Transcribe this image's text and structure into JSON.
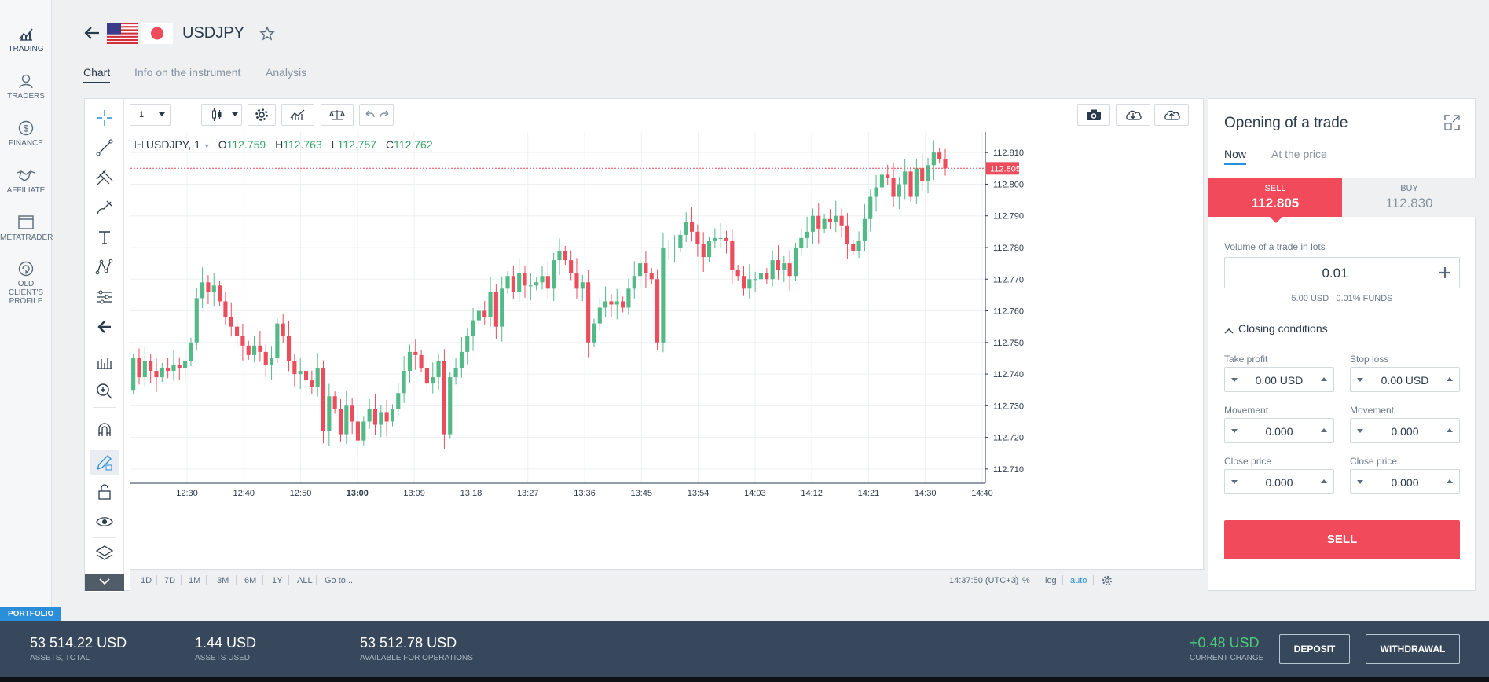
{
  "nav": {
    "items": [
      {
        "label": "TRADING",
        "icon": "chart-icon"
      },
      {
        "label": "TRADERS",
        "icon": "user-icon"
      },
      {
        "label": "FINANCE",
        "icon": "dollar-icon"
      },
      {
        "label": "AFFILIATE",
        "icon": "handshake-icon"
      },
      {
        "label": "METATRADER",
        "icon": "window-icon"
      },
      {
        "label": "OLD CLIENT'S",
        "label2": "PROFILE",
        "icon": "refresh-icon"
      }
    ],
    "portfolio": "PORTFOLIO"
  },
  "header": {
    "symbol": "USDJPY"
  },
  "tabs": [
    "Chart",
    "Info on the instrument",
    "Analysis"
  ],
  "toolbar": {
    "interval": "1"
  },
  "legend": {
    "symbol": "USDJPY, 1",
    "o_label": "O",
    "o": "112.759",
    "h_label": "H",
    "h": "112.763",
    "l_label": "L",
    "l": "112.757",
    "c_label": "C",
    "c": "112.762"
  },
  "timebar": {
    "ranges": [
      "1D",
      "7D",
      "1M",
      "3M",
      "6M",
      "1Y",
      "ALL"
    ],
    "goto": "Go to...",
    "clock": "14:37:50 (UTC+3)",
    "pct": "%",
    "log": "log",
    "auto": "auto"
  },
  "chart_data": {
    "type": "candlestick",
    "x_ticks": [
      "12:30",
      "12:40",
      "12:50",
      "13:00",
      "13:09",
      "13:18",
      "13:27",
      "13:36",
      "13:45",
      "13:54",
      "14:03",
      "14:12",
      "14:21",
      "14:30",
      "14:40"
    ],
    "y_ticks": [
      "112.810",
      "112.800",
      "112.790",
      "112.780",
      "112.770",
      "112.760",
      "112.750",
      "112.740",
      "112.730",
      "112.720",
      "112.710"
    ],
    "y_range": [
      112.7055,
      112.8165
    ],
    "current_price": "112.805",
    "up_color": "#53b987",
    "down_color": "#eb4d5c",
    "closes": [
      112.745,
      112.739,
      112.744,
      112.741,
      112.739,
      112.742,
      112.741,
      112.743,
      112.742,
      112.744,
      112.75,
      112.764,
      112.769,
      112.766,
      112.768,
      112.763,
      112.758,
      112.755,
      112.752,
      112.749,
      112.746,
      112.749,
      112.747,
      112.743,
      112.745,
      112.756,
      112.752,
      112.744,
      112.74,
      112.741,
      112.738,
      112.736,
      112.742,
      112.722,
      112.733,
      112.729,
      112.721,
      112.73,
      112.725,
      112.719,
      112.725,
      112.729,
      112.724,
      112.728,
      112.725,
      112.729,
      112.734,
      112.741,
      112.747,
      112.746,
      112.742,
      112.737,
      112.739,
      112.744,
      112.721,
      112.739,
      112.742,
      112.747,
      112.752,
      112.757,
      112.76,
      112.758,
      112.766,
      112.755,
      112.767,
      112.771,
      112.766,
      112.772,
      112.768,
      112.768,
      112.769,
      112.771,
      112.767,
      112.776,
      112.779,
      112.776,
      112.772,
      112.767,
      112.769,
      112.75,
      112.756,
      112.761,
      112.763,
      112.762,
      112.763,
      112.761,
      112.767,
      112.771,
      112.775,
      112.772,
      112.77,
      112.75,
      112.78,
      112.78,
      112.78,
      112.784,
      112.788,
      112.785,
      112.781,
      112.777,
      112.782,
      112.783,
      112.783,
      112.782,
      112.773,
      112.771,
      112.767,
      112.77,
      112.77,
      112.772,
      112.77,
      112.776,
      112.773,
      112.775,
      112.771,
      112.78,
      112.783,
      112.785,
      112.79,
      112.786,
      112.789,
      112.788,
      112.79,
      112.787,
      112.781,
      112.779,
      112.782,
      112.789,
      112.796,
      112.799,
      112.803,
      112.802,
      112.796,
      112.8,
      112.804,
      112.796,
      112.805,
      112.801,
      112.806,
      112.81,
      112.808,
      112.805,
      112.805
    ],
    "opens": [
      112.735,
      112.745,
      112.739,
      112.744,
      112.741,
      112.739,
      112.742,
      112.741,
      112.743,
      112.742,
      112.744,
      112.75,
      112.764,
      112.769,
      112.766,
      112.768,
      112.763,
      112.758,
      112.755,
      112.752,
      112.749,
      112.746,
      112.749,
      112.747,
      112.743,
      112.745,
      112.756,
      112.752,
      112.744,
      112.74,
      112.741,
      112.738,
      112.736,
      112.742,
      112.722,
      112.733,
      112.729,
      112.721,
      112.73,
      112.725,
      112.719,
      112.725,
      112.729,
      112.724,
      112.728,
      112.725,
      112.729,
      112.734,
      112.741,
      112.747,
      112.746,
      112.742,
      112.737,
      112.739,
      112.744,
      112.721,
      112.739,
      112.742,
      112.747,
      112.752,
      112.757,
      112.76,
      112.758,
      112.766,
      112.755,
      112.767,
      112.771,
      112.766,
      112.772,
      112.768,
      112.768,
      112.769,
      112.771,
      112.767,
      112.776,
      112.779,
      112.776,
      112.772,
      112.767,
      112.769,
      112.75,
      112.756,
      112.761,
      112.763,
      112.762,
      112.763,
      112.761,
      112.767,
      112.771,
      112.775,
      112.772,
      112.77,
      112.75,
      112.78,
      112.78,
      112.78,
      112.784,
      112.788,
      112.785,
      112.781,
      112.777,
      112.782,
      112.783,
      112.783,
      112.782,
      112.773,
      112.771,
      112.767,
      112.77,
      112.77,
      112.772,
      112.77,
      112.776,
      112.773,
      112.775,
      112.771,
      112.78,
      112.783,
      112.785,
      112.79,
      112.786,
      112.789,
      112.788,
      112.79,
      112.787,
      112.781,
      112.779,
      112.782,
      112.789,
      112.796,
      112.799,
      112.803,
      112.802,
      112.796,
      112.8,
      112.804,
      112.796,
      112.805,
      112.801,
      112.806,
      112.81,
      112.808
    ]
  },
  "trade": {
    "title": "Opening of a trade",
    "tab_now": "Now",
    "tab_price": "At the price",
    "sell_label": "SELL",
    "sell_price": "112.805",
    "buy_label": "BUY",
    "buy_price": "112.830",
    "volume_label": "Volume of a trade in lots",
    "volume": "0.01",
    "volume_info": "5.00 USD   0.01% FUNDS",
    "closing_conditions": "Closing conditions",
    "take_profit_label": "Take profit",
    "take_profit": "0.00 USD",
    "stop_loss_label": "Stop loss",
    "stop_loss": "0.00 USD",
    "movement_label": "Movement",
    "movement_left": "0.000",
    "movement_right": "0.000",
    "close_price_label": "Close price",
    "close_price_left": "0.000",
    "close_price_right": "0.000",
    "action": "SELL"
  },
  "bottom": {
    "assets_total": "53 514.22 USD",
    "assets_total_label": "ASSETS, TOTAL",
    "assets_used": "1.44 USD",
    "assets_used_label": "ASSETS USED",
    "available": "53 512.78 USD",
    "available_label": "AVAILABLE FOR OPERATIONS",
    "change": "+0.48 USD",
    "change_label": "CURRENT CHANGE",
    "deposit": "DEPOSIT",
    "withdrawal": "WITHDRAWAL"
  }
}
